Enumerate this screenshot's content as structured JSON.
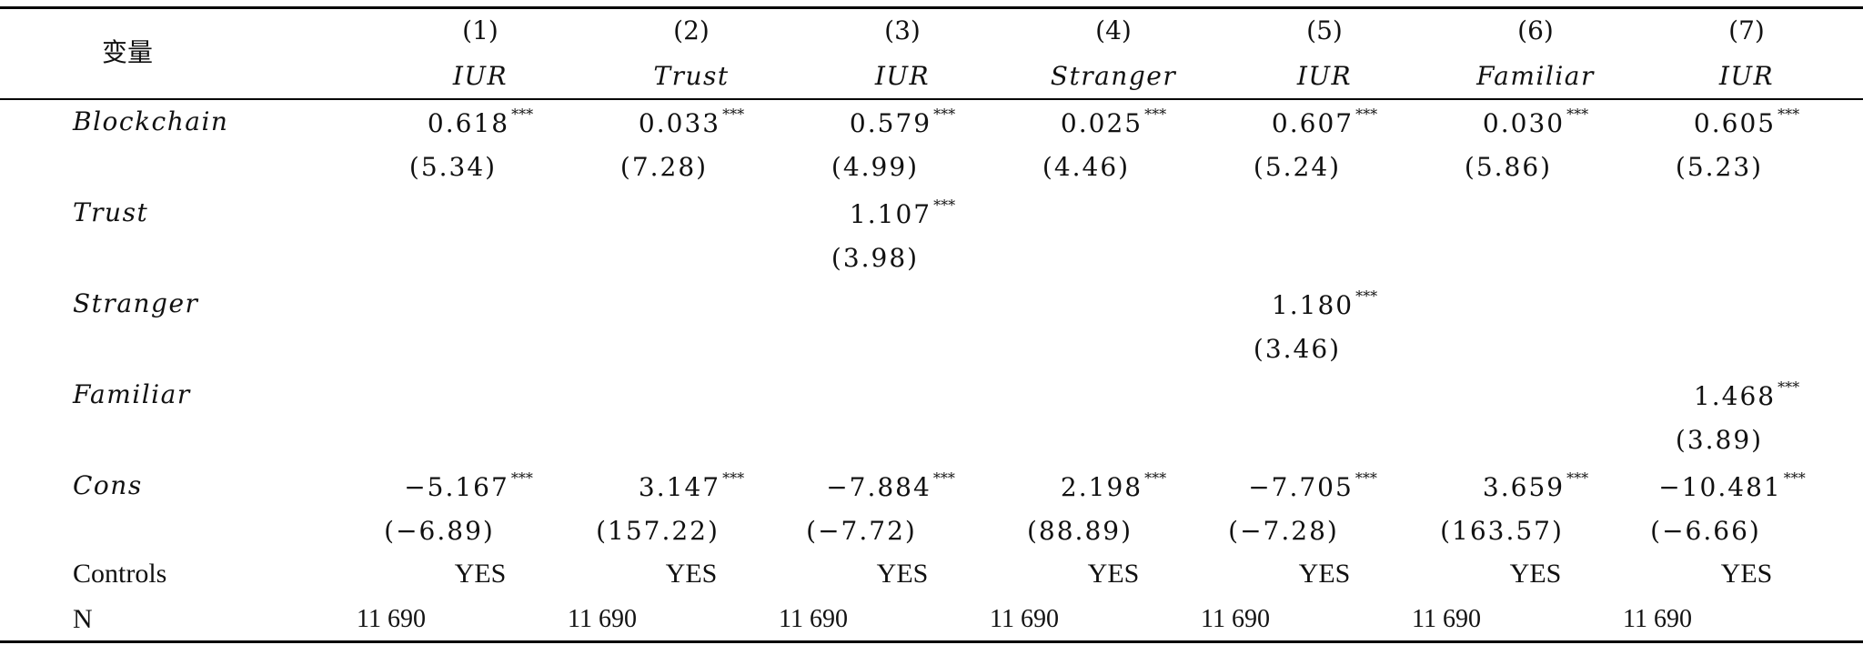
{
  "header": {
    "var_label": "变量",
    "col_nums": [
      "(1)",
      "(2)",
      "(3)",
      "(4)",
      "(5)",
      "(6)",
      "(7)"
    ],
    "col_deps": [
      "IUR",
      "Trust",
      "IUR",
      "Stranger",
      "IUR",
      "Familiar",
      "IUR"
    ]
  },
  "rows": {
    "blockchain": {
      "label": "Blockchain",
      "coefs": [
        "0.618",
        "0.033",
        "0.579",
        "0.025",
        "0.607",
        "0.030",
        "0.605"
      ],
      "stars": [
        "***",
        "***",
        "***",
        "***",
        "***",
        "***",
        "***"
      ],
      "ses": [
        "(5.34)",
        "(7.28)",
        "(4.99)",
        "(4.46)",
        "(5.24)",
        "(5.86)",
        "(5.23)"
      ]
    },
    "trust": {
      "label": "Trust",
      "coef": "1.107",
      "stars": "***",
      "se": "(3.98)"
    },
    "stranger": {
      "label": "Stranger",
      "coef": "1.180",
      "stars": "***",
      "se": "(3.46)"
    },
    "familiar": {
      "label": "Familiar",
      "coef": "1.468",
      "stars": "***",
      "se": "(3.89)"
    },
    "cons": {
      "label": "Cons",
      "coefs": [
        "−5.167",
        "3.147",
        "−7.884",
        "2.198",
        "−7.705",
        "3.659",
        "−10.481"
      ],
      "stars": [
        "***",
        "***",
        "***",
        "***",
        "***",
        "***",
        "***"
      ],
      "ses": [
        "(−6.89)",
        "(157.22)",
        "(−7.72)",
        "(88.89)",
        "(−7.28)",
        "(163.57)",
        "(−6.66)"
      ]
    },
    "controls": {
      "label": "Controls",
      "values": [
        "YES",
        "YES",
        "YES",
        "YES",
        "YES",
        "YES",
        "YES"
      ]
    },
    "n": {
      "label": "N",
      "values": [
        "11 690",
        "11 690",
        "11 690",
        "11 690",
        "11 690",
        "11 690",
        "11 690"
      ]
    }
  }
}
